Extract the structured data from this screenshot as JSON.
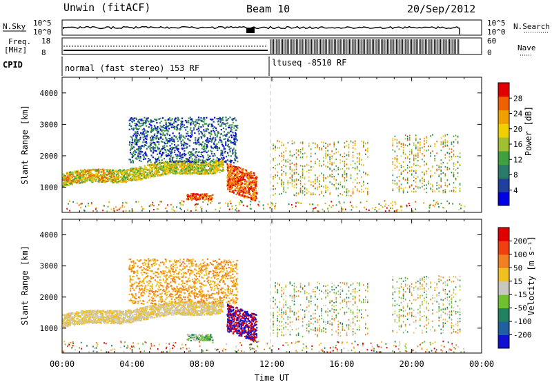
{
  "header": {
    "title": "Unwin (fitACF)",
    "beam": "Beam 10",
    "date": "20/Sep/2012"
  },
  "top_panels": {
    "nsky_label": "N.Sky",
    "nsky_ticks": [
      "10^5",
      "10^0"
    ],
    "nsearch_ticks": [
      "10^5",
      "10^0"
    ],
    "nsearch_label": "N.Search",
    "freq_label_1": "Freq.",
    "freq_label_2": "[MHz]",
    "freq_ticks": [
      "18",
      "8"
    ],
    "nave_ticks": [
      "60",
      "0"
    ],
    "nave_label": "Nave",
    "cpid_label": "CPID",
    "cpid_left": "normal (fast stereo) 153 RF",
    "cpid_right": "ltuseq -8510 RF"
  },
  "chart_data": [
    {
      "type": "heatmap",
      "name": "power",
      "ylabel": "Slant Range [km]",
      "xlabel": "",
      "y_ticks": [
        "4000",
        "3000",
        "2000",
        "1000"
      ],
      "y_values": [
        4000,
        3000,
        2000,
        1000
      ],
      "ylim": [
        200,
        4500
      ],
      "xlim": [
        0,
        24
      ],
      "colorbar": {
        "label": "Power [dB]",
        "ticks": [
          "28",
          "24",
          "20",
          "16",
          "12",
          "8",
          "4"
        ],
        "colors": [
          "#0000e0",
          "#2040a0",
          "#2a7a6a",
          "#40a040",
          "#a0c030",
          "#f0d000",
          "#f0a000",
          "#f06000",
          "#e00000"
        ]
      }
    },
    {
      "type": "heatmap",
      "name": "velocity",
      "ylabel": "Slant Range [km]",
      "xlabel": "Time UT",
      "y_ticks": [
        "4000",
        "3000",
        "2000",
        "1000"
      ],
      "y_values": [
        4000,
        3000,
        2000,
        1000
      ],
      "ylim": [
        200,
        4500
      ],
      "xlim": [
        0,
        24
      ],
      "x_ticks": [
        "00:00",
        "04:00",
        "08:00",
        "12:00",
        "16:00",
        "20:00",
        "00:00"
      ],
      "colorbar": {
        "label": "Velocity [m s⁻¹]",
        "ticks": [
          "200",
          "100",
          "50",
          "15",
          "-15",
          "-50",
          "-100",
          "-200"
        ],
        "colors": [
          "#1010d0",
          "#2060a0",
          "#208060",
          "#70c030",
          "#c8c8c0",
          "#f0c020",
          "#f08020",
          "#f04010",
          "#e00000"
        ]
      }
    }
  ]
}
